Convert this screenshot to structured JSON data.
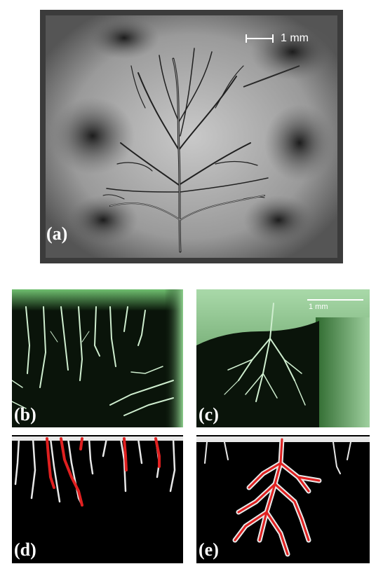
{
  "panels": {
    "a": {
      "label": "(a)",
      "scale_bar": "1 mm"
    },
    "b": {
      "label": "(b)"
    },
    "c": {
      "label": "(c)",
      "scale_bar": "1 mm"
    },
    "d": {
      "label": "(d)"
    },
    "e": {
      "label": "(e)"
    }
  },
  "colors": {
    "panel_a_background": "#8f8f8f",
    "panel_a_frame": "#3a3a3a",
    "green_panel_background": "#0a1a0a",
    "green_tint": "#4f8f4f",
    "binary_background": "#000000",
    "binary_branches": "#e8e8e8",
    "highlight_path": "#e02020"
  }
}
